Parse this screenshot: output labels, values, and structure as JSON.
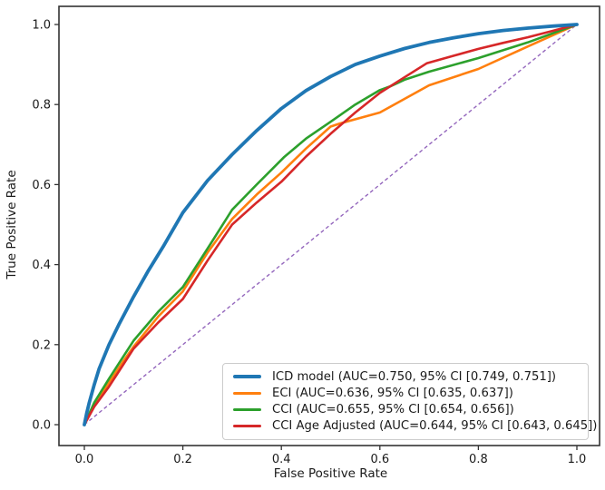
{
  "chart_data": {
    "type": "line",
    "title": "",
    "xlabel": "False Positive Rate",
    "ylabel": "True Positive Rate",
    "xlim": [
      -0.05,
      1.05
    ],
    "ylim": [
      -0.05,
      1.05
    ],
    "grid": false,
    "legend_position": "lower right",
    "x_ticks": [
      {
        "value": 0.0,
        "label": "0.0"
      },
      {
        "value": 0.2,
        "label": "0.2"
      },
      {
        "value": 0.4,
        "label": "0.4"
      },
      {
        "value": 0.6,
        "label": "0.6"
      },
      {
        "value": 0.8,
        "label": "0.8"
      },
      {
        "value": 1.0,
        "label": "1.0"
      }
    ],
    "y_ticks": [
      {
        "value": 0.0,
        "label": "0.0"
      },
      {
        "value": 0.2,
        "label": "0.2"
      },
      {
        "value": 0.4,
        "label": "0.4"
      },
      {
        "value": 0.6,
        "label": "0.6"
      },
      {
        "value": 0.8,
        "label": "0.8"
      },
      {
        "value": 1.0,
        "label": "1.0"
      }
    ],
    "series": [
      {
        "name": "ICD model",
        "auc": 0.75,
        "ci_95": [
          0.749,
          0.751
        ],
        "legend_label": "ICD model (AUC=0.750, 95% CI [0.749, 0.751])",
        "color": "#1f77b4",
        "line_width": 3.8,
        "points": [
          [
            0,
            0
          ],
          [
            0.005,
            0.03
          ],
          [
            0.01,
            0.055
          ],
          [
            0.02,
            0.1
          ],
          [
            0.03,
            0.14
          ],
          [
            0.05,
            0.2
          ],
          [
            0.07,
            0.25
          ],
          [
            0.1,
            0.32
          ],
          [
            0.13,
            0.385
          ],
          [
            0.16,
            0.445
          ],
          [
            0.2,
            0.53
          ],
          [
            0.25,
            0.61
          ],
          [
            0.3,
            0.675
          ],
          [
            0.35,
            0.735
          ],
          [
            0.4,
            0.79
          ],
          [
            0.45,
            0.835
          ],
          [
            0.5,
            0.87
          ],
          [
            0.55,
            0.9
          ],
          [
            0.6,
            0.921
          ],
          [
            0.65,
            0.94
          ],
          [
            0.7,
            0.955
          ],
          [
            0.75,
            0.967
          ],
          [
            0.8,
            0.977
          ],
          [
            0.85,
            0.985
          ],
          [
            0.9,
            0.991
          ],
          [
            0.95,
            0.996
          ],
          [
            1,
            1
          ]
        ]
      },
      {
        "name": "ECI",
        "auc": 0.636,
        "ci_95": [
          0.635,
          0.637
        ],
        "legend_label": "ECI (AUC=0.636, 95% CI [0.635, 0.637])",
        "color": "#ff7f0e",
        "line_width": 2.6,
        "points": [
          [
            0,
            0
          ],
          [
            0.02,
            0.05
          ],
          [
            0.05,
            0.105
          ],
          [
            0.08,
            0.16
          ],
          [
            0.1,
            0.195
          ],
          [
            0.15,
            0.27
          ],
          [
            0.2,
            0.333
          ],
          [
            0.25,
            0.43
          ],
          [
            0.3,
            0.514
          ],
          [
            0.35,
            0.575
          ],
          [
            0.4,
            0.63
          ],
          [
            0.45,
            0.69
          ],
          [
            0.5,
            0.745
          ],
          [
            0.52,
            0.753
          ],
          [
            0.6,
            0.78
          ],
          [
            0.7,
            0.848
          ],
          [
            0.8,
            0.889
          ],
          [
            0.9,
            0.945
          ],
          [
            1,
            1
          ]
        ]
      },
      {
        "name": "CCI",
        "auc": 0.655,
        "ci_95": [
          0.654,
          0.656
        ],
        "legend_label": "CCI (AUC=0.655, 95% CI [0.654, 0.656])",
        "color": "#2ca02c",
        "line_width": 2.6,
        "points": [
          [
            0,
            0
          ],
          [
            0.02,
            0.055
          ],
          [
            0.05,
            0.115
          ],
          [
            0.1,
            0.21
          ],
          [
            0.15,
            0.282
          ],
          [
            0.2,
            0.344
          ],
          [
            0.25,
            0.44
          ],
          [
            0.3,
            0.537
          ],
          [
            0.35,
            0.6
          ],
          [
            0.405,
            0.668
          ],
          [
            0.45,
            0.715
          ],
          [
            0.5,
            0.757
          ],
          [
            0.55,
            0.8
          ],
          [
            0.6,
            0.836
          ],
          [
            0.62,
            0.845
          ],
          [
            0.65,
            0.862
          ],
          [
            0.7,
            0.882
          ],
          [
            0.8,
            0.916
          ],
          [
            0.9,
            0.955
          ],
          [
            1,
            1
          ]
        ]
      },
      {
        "name": "CCI Age Adjusted",
        "auc": 0.644,
        "ci_95": [
          0.643,
          0.645
        ],
        "legend_label": "CCI Age Adjusted (AUC=0.644, 95% CI [0.643, 0.645])",
        "color": "#d62728",
        "line_width": 2.6,
        "points": [
          [
            0,
            0
          ],
          [
            0.02,
            0.045
          ],
          [
            0.05,
            0.095
          ],
          [
            0.1,
            0.19
          ],
          [
            0.15,
            0.255
          ],
          [
            0.2,
            0.314
          ],
          [
            0.25,
            0.41
          ],
          [
            0.3,
            0.5
          ],
          [
            0.35,
            0.555
          ],
          [
            0.4,
            0.607
          ],
          [
            0.45,
            0.67
          ],
          [
            0.5,
            0.727
          ],
          [
            0.55,
            0.78
          ],
          [
            0.6,
            0.829
          ],
          [
            0.65,
            0.868
          ],
          [
            0.695,
            0.903
          ],
          [
            0.75,
            0.922
          ],
          [
            0.8,
            0.939
          ],
          [
            0.85,
            0.954
          ],
          [
            0.9,
            0.968
          ],
          [
            0.95,
            0.984
          ],
          [
            1,
            1
          ]
        ]
      }
    ],
    "reference_line": {
      "name": "chance",
      "color": "#9467bd",
      "style": "dashed",
      "line_width": 1.4,
      "points": [
        [
          0,
          0
        ],
        [
          1,
          1
        ]
      ]
    }
  },
  "colors": {
    "spine": "#333333",
    "tick": "#333333",
    "text": "#1a1a1a",
    "legend_border": "#cccccc",
    "background": "#ffffff"
  }
}
